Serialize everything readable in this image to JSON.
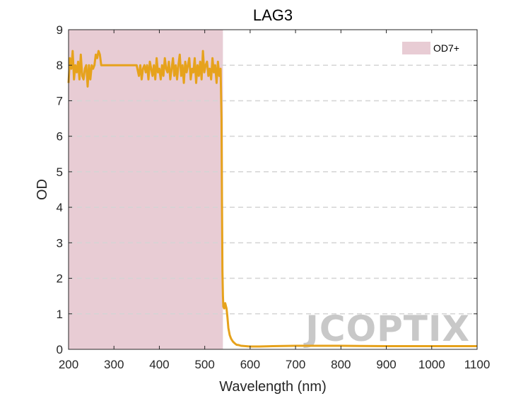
{
  "chart_data": {
    "type": "line",
    "title": "LAG3",
    "xlabel": "Wavelength (nm)",
    "ylabel": "OD",
    "xlim": [
      200,
      1100
    ],
    "ylim": [
      0,
      9
    ],
    "xticks": [
      200,
      300,
      400,
      500,
      600,
      700,
      800,
      900,
      1000,
      1100
    ],
    "yticks": [
      0,
      1,
      2,
      3,
      4,
      5,
      6,
      7,
      8,
      9
    ],
    "grid": "horizontal-dashed",
    "legend_position": "top-right",
    "shaded_region": {
      "label": "OD7+",
      "x_range": [
        200,
        540
      ],
      "color": "#e8ccd4"
    },
    "series": [
      {
        "color": "#e6a21c",
        "x": [
          200,
          203,
          206,
          209,
          212,
          215,
          218,
          221,
          224,
          227,
          230,
          233,
          236,
          239,
          242,
          245,
          248,
          251,
          254,
          257,
          260,
          263,
          266,
          269,
          272,
          275,
          278,
          281,
          284,
          287,
          290,
          293,
          296,
          299,
          302,
          305,
          310,
          320,
          330,
          340,
          350,
          355,
          358,
          361,
          364,
          367,
          370,
          373,
          376,
          379,
          382,
          385,
          388,
          391,
          394,
          397,
          400,
          403,
          406,
          409,
          412,
          415,
          418,
          421,
          424,
          427,
          430,
          433,
          436,
          439,
          442,
          445,
          448,
          451,
          454,
          457,
          460,
          463,
          466,
          469,
          472,
          475,
          478,
          481,
          484,
          487,
          490,
          493,
          496,
          499,
          502,
          505,
          508,
          511,
          514,
          517,
          520,
          523,
          526,
          529,
          532,
          535,
          537,
          538,
          539,
          540,
          541,
          543,
          545,
          548,
          550,
          552,
          555,
          558,
          562,
          566,
          570,
          575,
          580,
          590,
          600,
          620,
          650,
          700,
          800,
          900,
          1000,
          1100
        ],
        "y": [
          7.5,
          8.2,
          7.9,
          8.4,
          7.6,
          8.0,
          7.8,
          8.1,
          7.6,
          8.3,
          7.7,
          7.6,
          7.9,
          8.0,
          7.4,
          8.0,
          7.6,
          8.0,
          7.9,
          8.0,
          8.3,
          8.2,
          8.4,
          8.3,
          8.0,
          8.0,
          8.0,
          8.0,
          8.0,
          8.0,
          8.0,
          8.0,
          8.0,
          8.0,
          8.0,
          8.0,
          8.0,
          8.0,
          8.0,
          8.0,
          8.0,
          7.7,
          8.0,
          7.6,
          7.9,
          8.0,
          7.8,
          8.0,
          7.6,
          8.1,
          7.9,
          7.7,
          8.0,
          7.6,
          8.2,
          7.8,
          7.9,
          7.6,
          8.0,
          7.7,
          8.2,
          7.9,
          7.8,
          8.1,
          7.6,
          7.9,
          8.2,
          7.7,
          8.0,
          7.6,
          8.0,
          8.3,
          7.7,
          8.0,
          7.5,
          8.1,
          7.8,
          8.0,
          8.2,
          7.6,
          7.9,
          7.8,
          8.2,
          7.5,
          8.0,
          7.7,
          8.1,
          7.6,
          8.4,
          7.8,
          8.0,
          8.1,
          7.7,
          7.9,
          7.6,
          8.2,
          7.8,
          8.0,
          7.5,
          8.1,
          7.7,
          7.9,
          6.5,
          4.0,
          2.2,
          1.5,
          1.2,
          1.15,
          1.3,
          1.15,
          0.9,
          0.6,
          0.4,
          0.3,
          0.22,
          0.17,
          0.13,
          0.12,
          0.1,
          0.09,
          0.08,
          0.08,
          0.09,
          0.1,
          0.1,
          0.09,
          0.09,
          0.09
        ]
      }
    ]
  },
  "watermark": "JCOPTIX"
}
